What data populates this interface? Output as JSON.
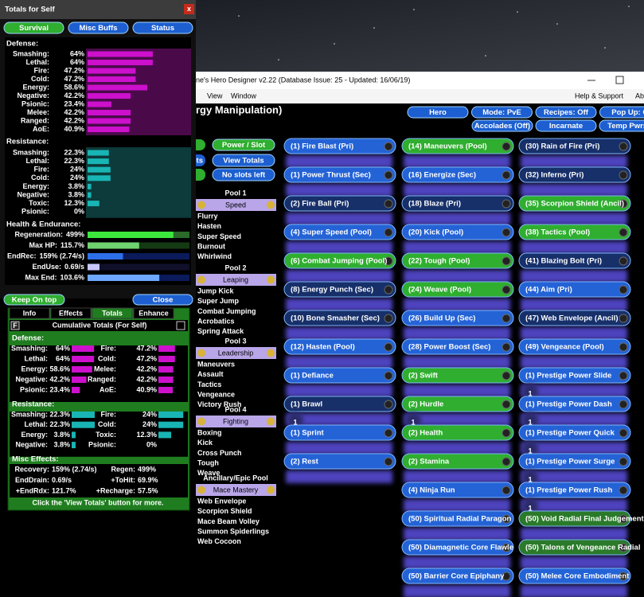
{
  "totals_window": {
    "title": "Totals for Self",
    "close": "x",
    "tabs": [
      "Survival",
      "Misc Buffs",
      "Status"
    ],
    "defense": {
      "heading": "Defense:",
      "rows": [
        {
          "label": "Smashing:",
          "text": "64%",
          "value": 64
        },
        {
          "label": "Lethal:",
          "text": "64%",
          "value": 64
        },
        {
          "label": "Fire:",
          "text": "47.2%",
          "value": 47.2
        },
        {
          "label": "Cold:",
          "text": "47.2%",
          "value": 47.2
        },
        {
          "label": "Energy:",
          "text": "58.6%",
          "value": 58.6
        },
        {
          "label": "Negative:",
          "text": "42.2%",
          "value": 42.2
        },
        {
          "label": "Psionic:",
          "text": "23.4%",
          "value": 23.4
        },
        {
          "label": "Melee:",
          "text": "42.2%",
          "value": 42.2
        },
        {
          "label": "Ranged:",
          "text": "42.2%",
          "value": 42.2
        },
        {
          "label": "AoE:",
          "text": "40.9%",
          "value": 40.9
        }
      ]
    },
    "resistance": {
      "heading": "Resistance:",
      "rows": [
        {
          "label": "Smashing:",
          "text": "22.3%",
          "value": 22.3
        },
        {
          "label": "Lethal:",
          "text": "22.3%",
          "value": 22.3
        },
        {
          "label": "Fire:",
          "text": "24%",
          "value": 24
        },
        {
          "label": "Cold:",
          "text": "24%",
          "value": 24
        },
        {
          "label": "Energy:",
          "text": "3.8%",
          "value": 3.8
        },
        {
          "label": "Negative:",
          "text": "3.8%",
          "value": 3.8
        },
        {
          "label": "Toxic:",
          "text": "12.3%",
          "value": 12.3
        },
        {
          "label": "Psionic:",
          "text": "0%",
          "value": 0
        }
      ]
    },
    "health": {
      "heading": "Health & Endurance:",
      "rows": [
        {
          "label": "Regeneration:",
          "text": "499%",
          "value": 499
        },
        {
          "label": "Max HP:",
          "text": "115.7%",
          "value": 115.7
        },
        {
          "label": "EndRec:",
          "text": "159% (2.74/s)",
          "value": 159
        },
        {
          "label": "EndUse:",
          "text": "0.69/s",
          "value": 0.69
        },
        {
          "label": "Max End:",
          "text": "103.6%",
          "value": 103.6
        }
      ]
    },
    "buttons": [
      "Keep On top",
      "Close"
    ]
  },
  "detail_panel": {
    "tabs": [
      "Info",
      "Effects",
      "Totals",
      "Enhance"
    ],
    "f_button": "F",
    "heading": "Cumulative Totals (For Self)",
    "defense": {
      "heading": "Defense:",
      "left": [
        {
          "label": "Smashing:",
          "text": "64%",
          "value": 64
        },
        {
          "label": "Lethal:",
          "text": "64%",
          "value": 64
        },
        {
          "label": "Energy:",
          "text": "58.6%",
          "value": 58.6
        },
        {
          "label": "Negative:",
          "text": "42.2%",
          "value": 42.2
        },
        {
          "label": "Psionic:",
          "text": "23.4%",
          "value": 23.4
        }
      ],
      "right": [
        {
          "label": "Fire:",
          "text": "47.2%",
          "value": 47.2
        },
        {
          "label": "Cold:",
          "text": "47.2%",
          "value": 47.2
        },
        {
          "label": "Melee:",
          "text": "42.2%",
          "value": 42.2
        },
        {
          "label": "Ranged:",
          "text": "42.2%",
          "value": 42.2
        },
        {
          "label": "AoE:",
          "text": "40.9%",
          "value": 40.9
        }
      ]
    },
    "resistance": {
      "heading": "Resistance:",
      "left": [
        {
          "label": "Smashing:",
          "text": "22.3%",
          "value": 22.3
        },
        {
          "label": "Lethal:",
          "text": "22.3%",
          "value": 22.3
        },
        {
          "label": "Energy:",
          "text": "3.8%",
          "value": 3.8
        },
        {
          "label": "Negative:",
          "text": "3.8%",
          "value": 3.8
        }
      ],
      "right": [
        {
          "label": "Fire:",
          "text": "24%",
          "value": 24
        },
        {
          "label": "Cold:",
          "text": "24%",
          "value": 24
        },
        {
          "label": "Toxic:",
          "text": "12.3%",
          "value": 12.3
        },
        {
          "label": "Psionic:",
          "text": "0%",
          "value": 0
        }
      ]
    },
    "misc": {
      "heading": "Misc Effects:",
      "left": [
        {
          "label": "Recovery:",
          "text": "159% (2.74/s)"
        },
        {
          "label": "EndDrain:",
          "text": "0.69/s"
        },
        {
          "label": "+EndRdx:",
          "text": "121.7%"
        }
      ],
      "right": [
        {
          "label": "Regen:",
          "text": "499%"
        },
        {
          "label": "+ToHit:",
          "text": "69.9%"
        },
        {
          "label": "+Recharge:",
          "text": "57.5%"
        }
      ]
    },
    "footer": "Click the 'View Totals' button for more."
  },
  "main_window": {
    "title": "ne's Hero Designer v2.22 (Database Issue: 25 - Updated: 16/06/19)",
    "menu_left": [
      "View",
      "Window"
    ],
    "menu_right": [
      "Help & Support",
      "Ab"
    ],
    "heading": "rgy Manipulation)",
    "top_buttons": [
      [
        "Hero",
        "Mode: PvE",
        "Recipes: Off",
        "Pop Up: O"
      ],
      [
        "Accolades (Off)",
        "Incarnate",
        "Temp Pwrs ("
      ]
    ],
    "side_buttons": [
      "Power / Slot",
      "View Totals",
      "No slots left"
    ],
    "partial_button": "ets",
    "pools": [
      {
        "heading": "Pool 1",
        "name": "Speed",
        "powers": [
          {
            "name": "Flurry",
            "color": "#ffff33"
          },
          {
            "name": "Hasten",
            "color": "#33dd33"
          },
          {
            "name": "Super Speed",
            "color": "#33dd33"
          },
          {
            "name": "Burnout",
            "color": "#ffff33"
          },
          {
            "name": "Whirlwind",
            "color": "#ffff33"
          }
        ]
      },
      {
        "heading": "Pool 2",
        "name": "Leaping",
        "powers": [
          {
            "name": "Jump Kick",
            "color": "#ffff33"
          },
          {
            "name": "Super Jump",
            "color": "#ffff33"
          },
          {
            "name": "Combat Jumping",
            "color": "#33dd33"
          },
          {
            "name": "Acrobatics",
            "color": "#7fae7f"
          },
          {
            "name": "Spring Attack",
            "color": "#9c9c9c"
          }
        ]
      },
      {
        "heading": "Pool 3",
        "name": "Leadership",
        "powers": [
          {
            "name": "Maneuvers",
            "color": "#33dd33"
          },
          {
            "name": "Assault",
            "color": "#ffff33"
          },
          {
            "name": "Tactics",
            "color": "#33dd33"
          },
          {
            "name": "Vengeance",
            "color": "#33dd33"
          },
          {
            "name": "Victory Rush",
            "color": "#ffff33"
          }
        ]
      },
      {
        "heading": "Pool 4",
        "name": "Fighting",
        "powers": [
          {
            "name": "Boxing",
            "color": "#ffff33"
          },
          {
            "name": "Kick",
            "color": "#33dd33"
          },
          {
            "name": "Cross Punch",
            "color": "#ffff33"
          },
          {
            "name": "Tough",
            "color": "#33dd33"
          },
          {
            "name": "Weave",
            "color": "#33dd33"
          }
        ]
      },
      {
        "heading": "Ancillary/Epic Pool",
        "name": "Mace Mastery",
        "powers": [
          {
            "name": "Web Envelope",
            "color": "#33dd33"
          },
          {
            "name": "Scorpion Shield",
            "color": "#33dd33"
          },
          {
            "name": "Mace Beam Volley",
            "color": "#ffff33"
          },
          {
            "name": "Summon Spiderlings",
            "color": "#ffff33"
          },
          {
            "name": "Web Cocoon",
            "color": "#ffff33"
          }
        ]
      }
    ],
    "power_columns": [
      [
        {
          "label": "(1) Fire Blast (Pri)",
          "color": "#2463d6",
          "text_color": "#ffffff"
        },
        {
          "label": "(1) Power Thrust (Sec)",
          "color": "#2463d6",
          "text_color": "#ffffff"
        },
        {
          "label": "(2) Fire Ball (Pri)",
          "color": "#17306a",
          "text_color": "#6a7a9a"
        },
        {
          "label": "(4) Super Speed (Pool)",
          "color": "#2463d6",
          "text_color": "#ffffff"
        },
        {
          "label": "(6) Combat Jumping (Pool)",
          "color": "#2fae2f",
          "text_color": "#ffffff"
        },
        {
          "label": "(8) Energy Punch (Sec)",
          "color": "#17306a",
          "text_color": "#6a7a9a"
        },
        {
          "label": "(10) Bone Smasher (Sec)",
          "color": "#17306a",
          "text_color": "#6a7a9a"
        },
        {
          "label": "(12) Hasten (Pool)",
          "color": "#2463d6",
          "text_color": "#ffffff"
        },
        {
          "label": "(1) Defiance",
          "color": "#2463d6",
          "text_color": "#ffffff"
        },
        {
          "label": "(1) Brawl",
          "color": "#17306a",
          "text_color": "#6a7a9a",
          "slots": "1"
        },
        {
          "label": "(1) Sprint",
          "color": "#2463d6",
          "text_color": "#ffffff"
        },
        {
          "label": "(2) Rest",
          "color": "#2463d6",
          "text_color": "#ffffff"
        }
      ],
      [
        {
          "label": "(14) Maneuvers (Pool)",
          "color": "#2fae2f",
          "text_color": "#ffffff"
        },
        {
          "label": "(16) Energize (Sec)",
          "color": "#2463d6",
          "text_color": "#ffffff"
        },
        {
          "label": "(18) Blaze (Pri)",
          "color": "#17306a",
          "text_color": "#6a7a9a"
        },
        {
          "label": "(20) Kick (Pool)",
          "color": "#2463d6",
          "text_color": "#ffffff"
        },
        {
          "label": "(22) Tough (Pool)",
          "color": "#2fae2f",
          "text_color": "#ffffff"
        },
        {
          "label": "(24) Weave (Pool)",
          "color": "#2fae2f",
          "text_color": "#ffffff"
        },
        {
          "label": "(26) Build Up (Sec)",
          "color": "#2463d6",
          "text_color": "#ffffff"
        },
        {
          "label": "(28) Power Boost (Sec)",
          "color": "#2463d6",
          "text_color": "#ffffff"
        },
        {
          "label": "(2) Swift",
          "color": "#2fae2f",
          "text_color": "#ffffff"
        },
        {
          "label": "(2) Hurdle",
          "color": "#2fae2f",
          "text_color": "#ffffff",
          "slots": "1"
        },
        {
          "label": "(2) Health",
          "color": "#2fae2f",
          "text_color": "#ffffff"
        },
        {
          "label": "(2) Stamina",
          "color": "#2fae2f",
          "text_color": "#ffffff"
        },
        {
          "label": "(4) Ninja Run",
          "color": "#2463d6",
          "text_color": "#ffffff"
        },
        {
          "label": "(50) Spiritual Radial Paragon",
          "color": "#2463d6",
          "text_color": "#ffffff"
        },
        {
          "label": "(50) Diamagnetic Core Flawle",
          "color": "#2463d6",
          "text_color": "#ffffff"
        },
        {
          "label": "(50) Barrier Core Epiphany",
          "color": "#2463d6",
          "text_color": "#ffffff"
        }
      ],
      [
        {
          "label": "(30) Rain of Fire (Pri)",
          "color": "#17306a",
          "text_color": "#6a7a9a"
        },
        {
          "label": "(32) Inferno (Pri)",
          "color": "#17306a",
          "text_color": "#6a7a9a"
        },
        {
          "label": "(35) Scorpion Shield (Ancil)",
          "color": "#2fae2f",
          "text_color": "#ffffff"
        },
        {
          "label": "(38) Tactics (Pool)",
          "color": "#2fae2f",
          "text_color": "#ffffff"
        },
        {
          "label": "(41) Blazing Bolt (Pri)",
          "color": "#17306a",
          "text_color": "#6a7a9a"
        },
        {
          "label": "(44) Aim (Pri)",
          "color": "#2463d6",
          "text_color": "#ffffff"
        },
        {
          "label": "(47) Web Envelope (Ancil)",
          "color": "#17306a",
          "text_color": "#6a7a9a"
        },
        {
          "label": "(49) Vengeance (Pool)",
          "color": "#2463d6",
          "text_color": "#ffffff"
        },
        {
          "label": "(1) Prestige Power Slide",
          "color": "#2463d6",
          "text_color": "#ffffff",
          "slots": "1"
        },
        {
          "label": "(1) Prestige Power Dash",
          "color": "#2463d6",
          "text_color": "#ffffff",
          "slots": "1"
        },
        {
          "label": "(1) Prestige Power Quick",
          "color": "#2463d6",
          "text_color": "#ffffff",
          "slots": "1"
        },
        {
          "label": "(1) Prestige Power Surge",
          "color": "#2463d6",
          "text_color": "#ffffff",
          "slots": "1"
        },
        {
          "label": "(1) Prestige Power Rush",
          "color": "#2463d6",
          "text_color": "#ffffff",
          "slots": "1"
        },
        {
          "label": "(50) Void Radial Final Judgement",
          "color": "#2a7a2a",
          "text_color": "#9ab89a"
        },
        {
          "label": "(50) Talons of Vengeance Radial",
          "color": "#2a7a2a",
          "text_color": "#9ab89a"
        },
        {
          "label": "(50) Melee Core Embodiment",
          "color": "#2463d6",
          "text_color": "#ffffff"
        }
      ]
    ]
  }
}
